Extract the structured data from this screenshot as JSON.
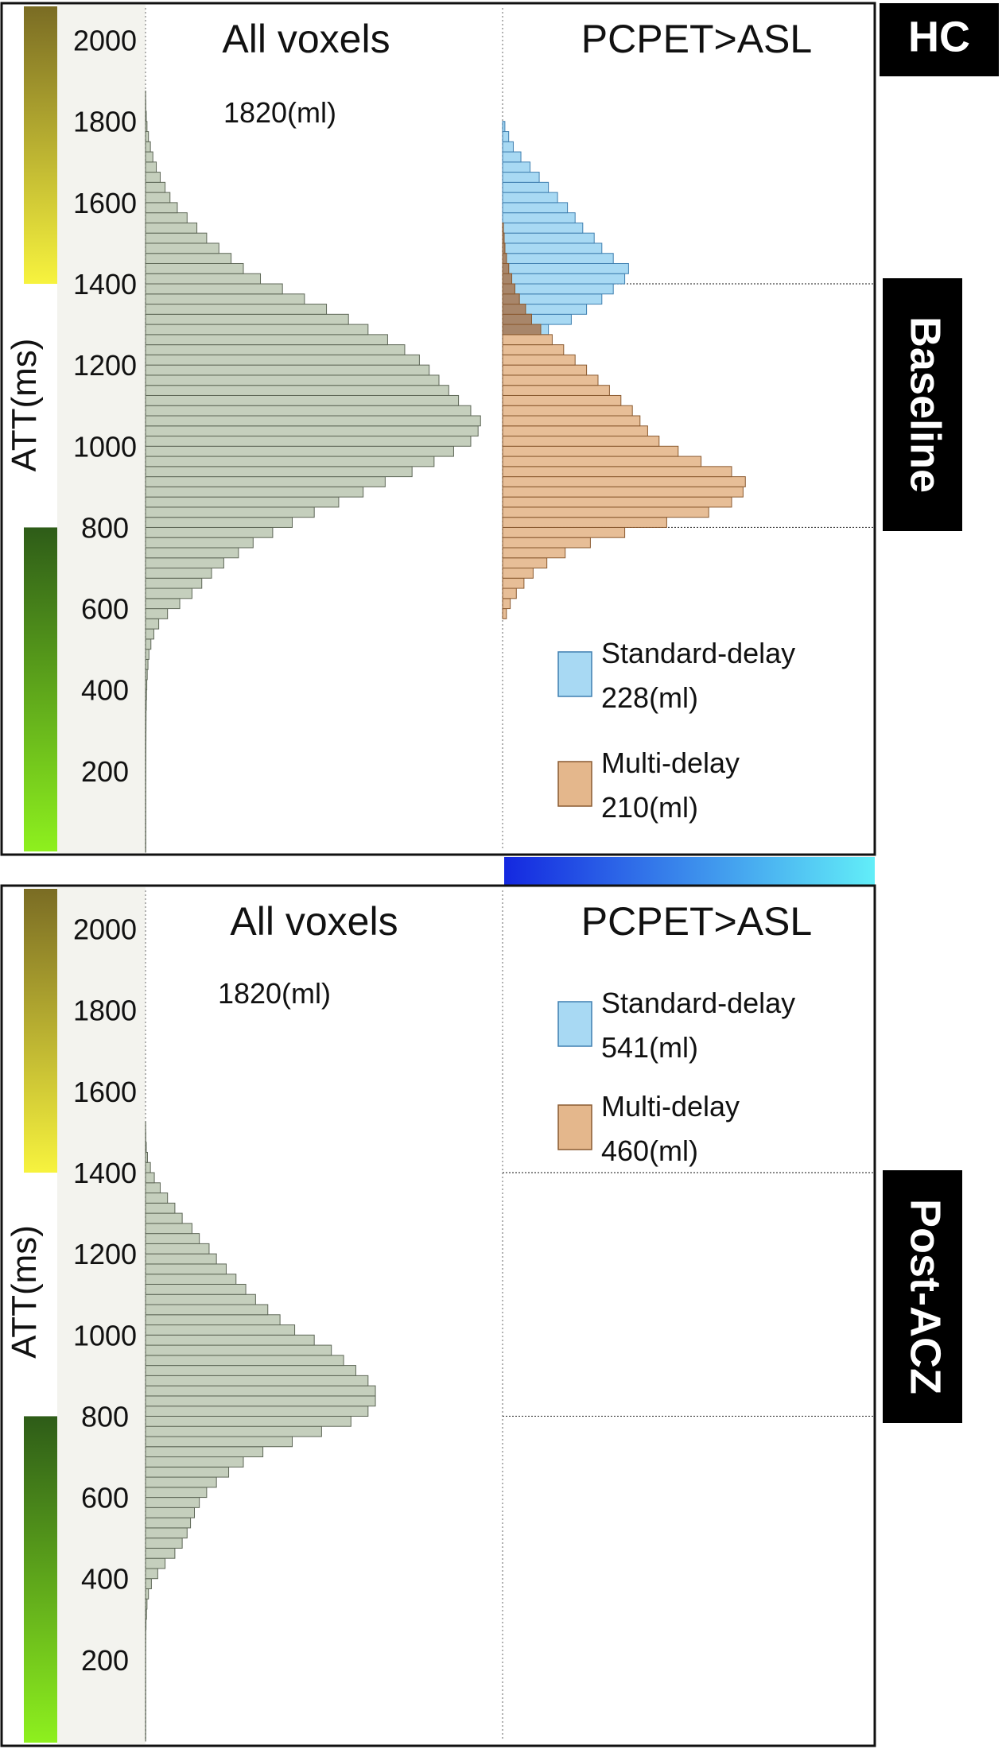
{
  "colors": {
    "all_fill": "#c5cfbd",
    "all_stroke": "#5e6757",
    "std_fill": "#a8d9f3",
    "std_stroke": "#3f7fb0",
    "multi_fill": "#e4b78c",
    "multi_stroke": "#8a5a30",
    "overlap_fill": "#a8866a",
    "yellow_top": "#7a6c24",
    "yellow_bottom": "#f7f33e",
    "green_top": "#2e5c18",
    "green_bottom": "#8ef01e",
    "blue_left": "#1428e0",
    "blue_right": "#62eef8",
    "label_bg": "#000000",
    "label_text": "#ffffff"
  },
  "labels": {
    "group": "HC",
    "panel_top": "Baseline",
    "panel_bottom": "Post-ACZ"
  },
  "chart_data": [
    {
      "type": "bar",
      "orientation": "horizontal",
      "panel": "Baseline",
      "ylabel": "ATT(ms)",
      "yticks": [
        200,
        400,
        600,
        800,
        1000,
        1200,
        1400,
        1600,
        1800,
        2000
      ],
      "ylim": [
        0,
        2100
      ],
      "reference_lines": [
        800,
        1400
      ],
      "column_titles": [
        "All voxels",
        "PCPET>ASL"
      ],
      "all_voxels_volume": "1820(ml)",
      "legend": [
        {
          "key": "std",
          "label": "Standard-delay",
          "volume": "228(ml)"
        },
        {
          "key": "multi",
          "label": "Multi-delay",
          "volume": "210(ml)"
        }
      ],
      "bins": [
        25,
        50,
        75,
        100,
        125,
        150,
        175,
        200,
        225,
        250,
        275,
        300,
        325,
        350,
        375,
        400,
        425,
        450,
        475,
        500,
        525,
        550,
        575,
        600,
        625,
        650,
        675,
        700,
        725,
        750,
        775,
        800,
        825,
        850,
        875,
        900,
        925,
        950,
        975,
        1000,
        1025,
        1050,
        1075,
        1100,
        1125,
        1150,
        1175,
        1200,
        1225,
        1250,
        1275,
        1300,
        1325,
        1350,
        1375,
        1400,
        1425,
        1450,
        1475,
        1500,
        1525,
        1550,
        1575,
        1600,
        1625,
        1650,
        1675,
        1700,
        1725,
        1750,
        1775,
        1800,
        1825,
        1850,
        1875
      ],
      "all": [
        0.5,
        0.5,
        0.5,
        0.5,
        0.5,
        0.5,
        0.5,
        0.6,
        0.6,
        0.7,
        0.8,
        0.9,
        1,
        1.1,
        1.5,
        2,
        2.6,
        3.5,
        5,
        7,
        11,
        17,
        27,
        45,
        70,
        95,
        115,
        135,
        160,
        190,
        220,
        260,
        300,
        345,
        395,
        445,
        490,
        545,
        590,
        630,
        665,
        680,
        685,
        665,
        640,
        620,
        600,
        580,
        560,
        530,
        495,
        455,
        415,
        370,
        325,
        280,
        235,
        200,
        175,
        150,
        125,
        105,
        85,
        65,
        50,
        40,
        30,
        22,
        15,
        10,
        6,
        3,
        1.5,
        0.5,
        0.2
      ],
      "std": [
        0,
        0,
        0,
        0,
        0,
        0,
        0,
        0,
        0,
        0,
        0,
        0,
        0,
        0,
        0,
        0,
        0,
        0,
        0,
        0,
        0,
        0,
        0,
        0,
        0,
        0,
        0,
        0,
        0,
        0,
        0,
        0,
        0,
        0,
        0,
        0,
        0,
        0,
        0,
        0,
        0,
        0,
        0,
        0,
        0,
        0,
        0,
        0,
        0,
        0,
        0,
        60,
        90,
        110,
        130,
        145,
        160,
        165,
        145,
        130,
        120,
        105,
        95,
        85,
        72,
        60,
        48,
        36,
        24,
        14,
        8,
        3,
        0,
        0,
        0
      ],
      "multi": [
        0,
        0,
        0,
        0,
        0,
        0,
        0,
        0,
        0,
        0,
        0,
        0,
        0,
        0,
        0,
        0,
        0,
        0,
        0,
        0,
        0,
        0,
        0,
        5,
        10,
        18,
        28,
        40,
        58,
        82,
        115,
        160,
        215,
        270,
        300,
        315,
        318,
        300,
        260,
        230,
        205,
        190,
        180,
        170,
        155,
        140,
        125,
        110,
        95,
        80,
        65,
        50,
        38,
        30,
        22,
        16,
        12,
        8,
        5,
        3,
        2,
        1,
        0,
        0,
        0,
        0,
        0,
        0,
        0,
        0,
        0,
        0,
        0,
        0,
        0
      ]
    },
    {
      "type": "bar",
      "orientation": "horizontal",
      "panel": "Post-ACZ",
      "ylabel": "ATT(ms)",
      "yticks": [
        200,
        400,
        600,
        800,
        1000,
        1200,
        1400,
        1600,
        1800,
        2000
      ],
      "ylim": [
        0,
        2100
      ],
      "reference_lines": [
        800,
        1400
      ],
      "column_titles": [
        "All voxels",
        "PCPET>ASL"
      ],
      "all_voxels_volume": "1820(ml)",
      "legend": [
        {
          "key": "std",
          "label": "Standard-delay",
          "volume": "541(ml)"
        },
        {
          "key": "multi",
          "label": "Multi-delay",
          "volume": "460(ml)"
        }
      ],
      "bins": [
        25,
        50,
        75,
        100,
        125,
        150,
        175,
        200,
        225,
        250,
        275,
        300,
        325,
        350,
        375,
        400,
        425,
        450,
        475,
        500,
        525,
        550,
        575,
        600,
        625,
        650,
        675,
        700,
        725,
        750,
        775,
        800,
        825,
        850,
        875,
        900,
        925,
        950,
        975,
        1000,
        1025,
        1050,
        1075,
        1100,
        1125,
        1150,
        1175,
        1200,
        1225,
        1250,
        1275,
        1300,
        1325,
        1350,
        1375,
        1400,
        1425,
        1450,
        1475,
        1500,
        1525,
        1550,
        1575,
        1600,
        1625,
        1650,
        1675,
        1700,
        1725,
        1750,
        1775,
        1800,
        1825,
        1850,
        1875
      ],
      "all": [
        0.3,
        0.3,
        0.3,
        0.3,
        0.3,
        0.3,
        0.3,
        0.3,
        0.3,
        0.4,
        0.5,
        1,
        2,
        3,
        6,
        12,
        25,
        40,
        60,
        75,
        85,
        92,
        100,
        110,
        125,
        145,
        170,
        200,
        240,
        300,
        360,
        420,
        455,
        470,
        470,
        455,
        430,
        405,
        380,
        345,
        305,
        275,
        250,
        225,
        205,
        185,
        165,
        145,
        130,
        110,
        95,
        75,
        60,
        45,
        30,
        18,
        10,
        4,
        1.5,
        0.5,
        0.2,
        0,
        0,
        0,
        0,
        0,
        0,
        0,
        0,
        0,
        0,
        0,
        0,
        0,
        0
      ],
      "std": [
        0,
        0,
        0,
        0,
        0,
        0,
        0,
        0,
        0,
        0,
        0,
        0,
        0,
        0,
        0,
        0,
        0,
        0,
        0,
        0,
        0,
        0,
        0,
        0,
        0,
        0,
        0,
        0,
        0,
        0,
        0,
        0,
        0,
        0,
        0,
        0,
        0,
        0,
        0,
        0,
        0,
        0,
        0,
        0,
        0,
        0,
        0,
        0,
        0,
        0,
        0,
        0,
        0,
        0,
        0,
        0,
        0,
        0,
        0,
        0,
        0,
        0,
        0,
        0,
        0,
        0,
        0,
        0,
        0,
        0,
        0,
        0,
        0,
        0,
        0
      ],
      "multi": [
        0,
        0,
        0,
        0,
        0,
        0,
        0,
        0,
        0,
        0,
        0,
        0,
        0,
        0,
        0,
        0,
        0,
        0,
        0,
        0,
        0,
        0,
        0,
        0,
        0,
        0,
        0,
        0,
        0,
        0,
        0,
        0,
        0,
        0,
        0,
        0,
        0,
        0,
        0,
        0,
        0,
        0,
        0,
        0,
        0,
        0,
        0,
        0,
        0,
        0,
        0,
        0,
        0,
        0,
        0,
        0,
        0,
        0,
        0,
        0,
        0,
        0,
        0,
        0,
        0,
        0,
        0,
        0,
        0,
        0,
        0,
        0,
        0,
        0,
        0
      ]
    }
  ]
}
